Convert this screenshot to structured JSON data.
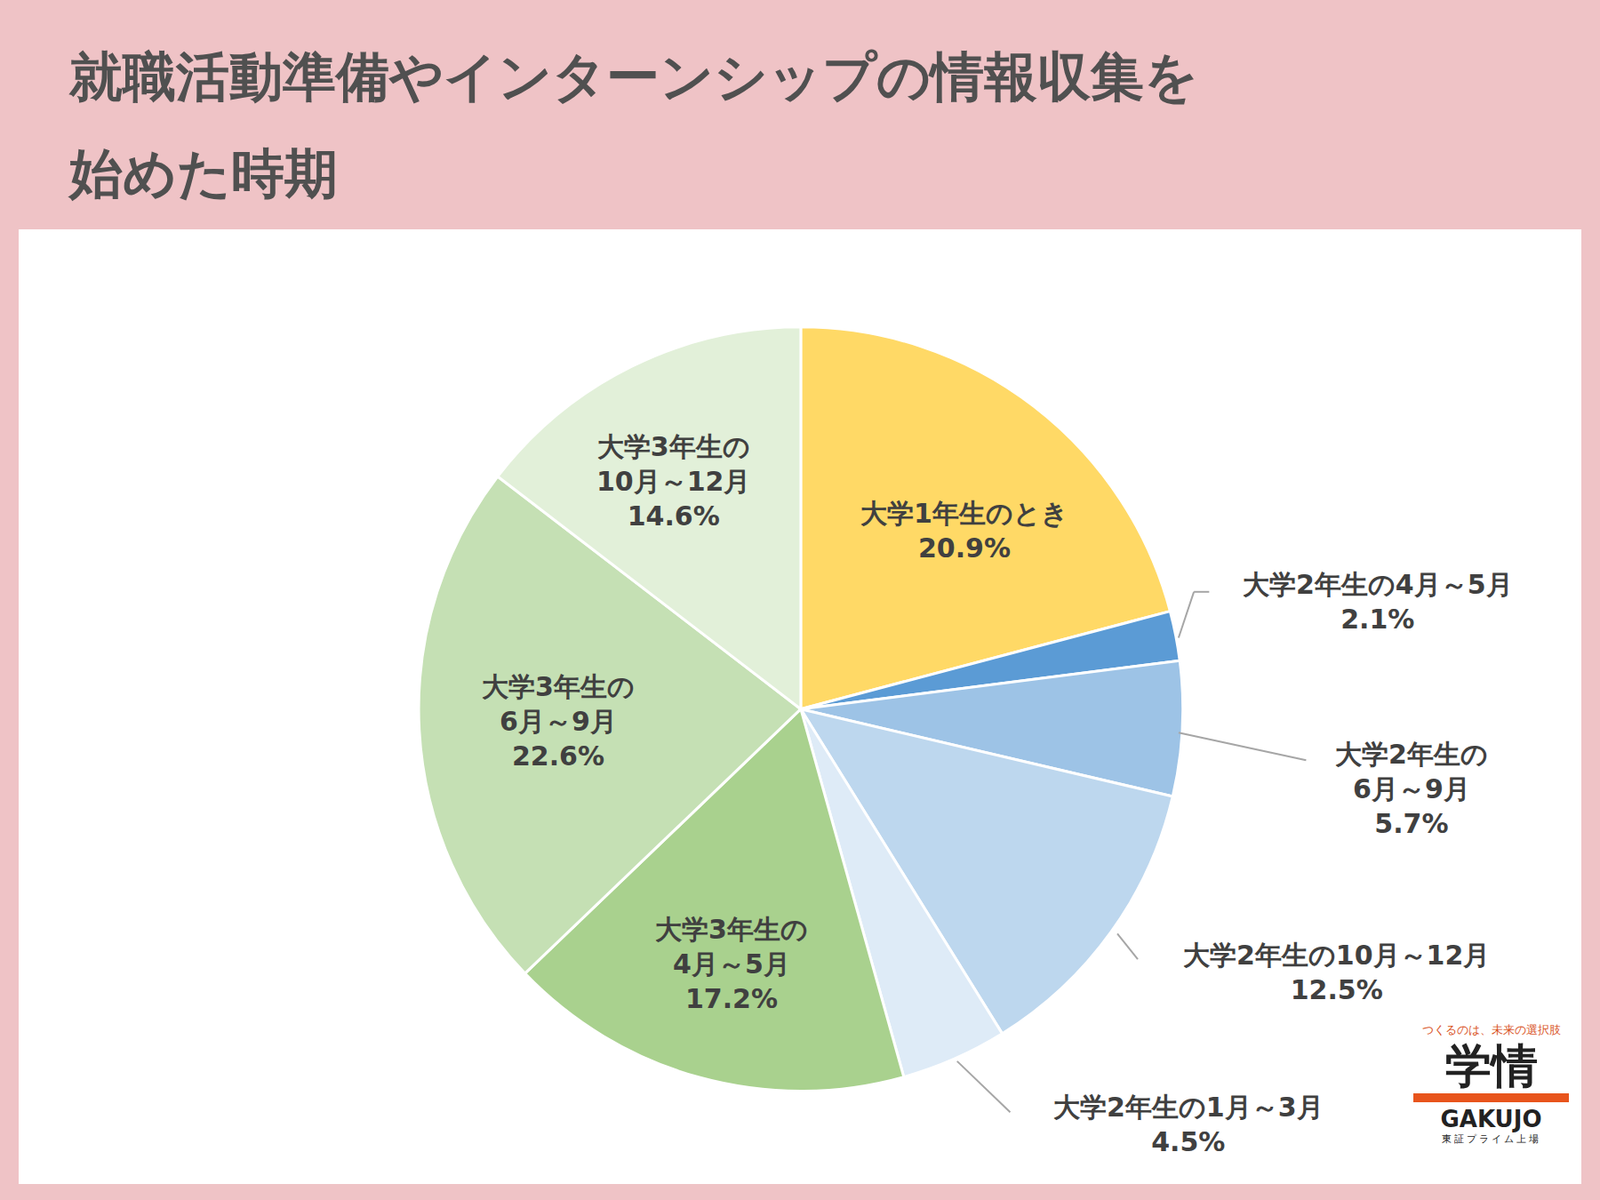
{
  "chart_data": {
    "type": "pie",
    "title": "就職活動準備やインターンシップの情報収集を\n始めた時期",
    "categories": [
      "大学1年生のとき",
      "大学2年生の4月～5月",
      "大学2年生の\n6月～9月",
      "大学2年生の10月～12月",
      "大学2年生の1月～3月",
      "大学3年生の\n4月～5月",
      "大学3年生の\n6月～9月",
      "大学3年生の\n10月～12月"
    ],
    "values": [
      20.9,
      2.1,
      5.7,
      12.5,
      4.5,
      17.2,
      22.6,
      14.6
    ],
    "value_labels": [
      "20.9%",
      "2.1%",
      "5.7%",
      "12.5%",
      "4.5%",
      "17.2%",
      "22.6%",
      "14.6%"
    ],
    "colors": [
      "#ffd966",
      "#5b9bd5",
      "#9dc3e6",
      "#bdd7ee",
      "#deebf7",
      "#a9d18e",
      "#c5e0b4",
      "#e2f0d9"
    ],
    "data_labels": true
  },
  "logo": {
    "tagline": "つくるのは、未来の選択肢",
    "name": "学情",
    "name_en": "GAKUJO",
    "note": "東証プライム上場"
  }
}
